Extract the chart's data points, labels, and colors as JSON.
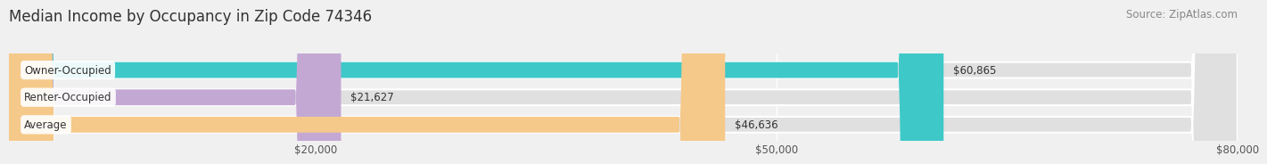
{
  "title": "Median Income by Occupancy in Zip Code 74346",
  "source": "Source: ZipAtlas.com",
  "categories": [
    "Owner-Occupied",
    "Renter-Occupied",
    "Average"
  ],
  "values": [
    60865,
    21627,
    46636
  ],
  "bar_colors": [
    "#3ec8c8",
    "#c4a8d4",
    "#f5c98a"
  ],
  "label_texts": [
    "$60,865",
    "$21,627",
    "$46,636"
  ],
  "xlim": [
    0,
    80000
  ],
  "xticks": [
    20000,
    50000,
    80000
  ],
  "xticklabels": [
    "$20,000",
    "$50,000",
    "$80,000"
  ],
  "bg_color": "#f0f0f0",
  "bar_bg_color": "#e0e0e0",
  "title_fontsize": 12,
  "source_fontsize": 8.5,
  "label_fontsize": 8.5,
  "category_fontsize": 8.5,
  "bar_height": 0.58
}
